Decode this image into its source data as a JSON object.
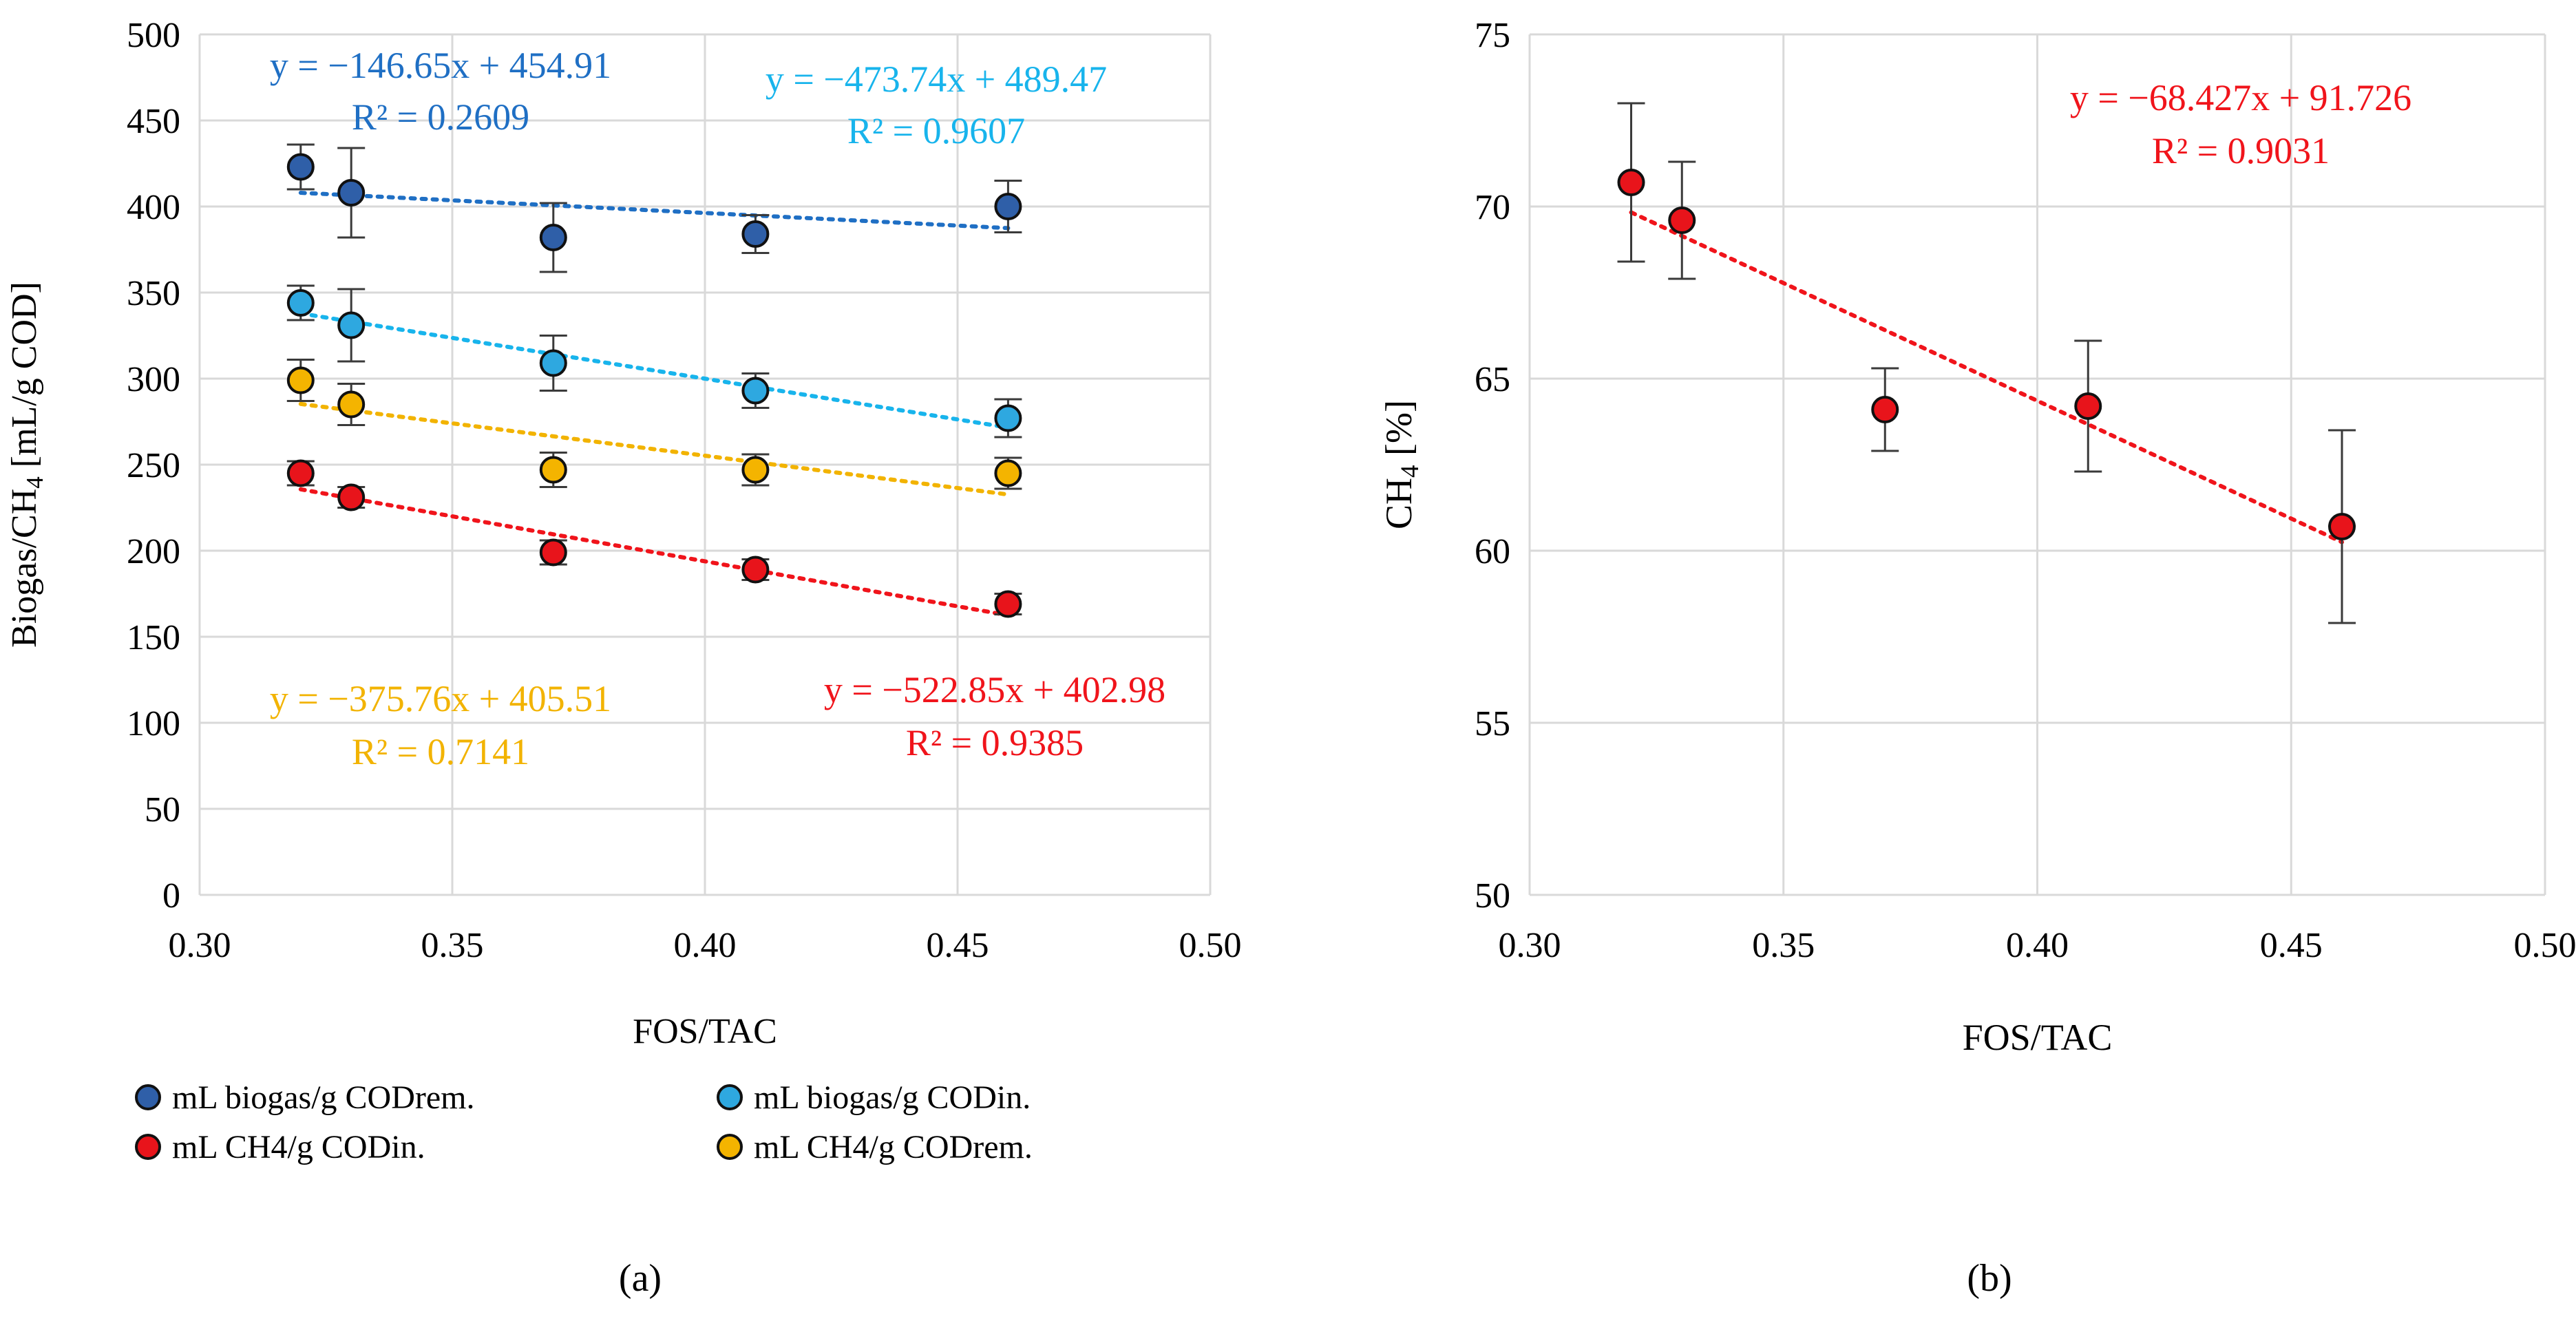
{
  "chart_data": [
    {
      "id": "a",
      "type": "scatter",
      "panel_label": "(a)",
      "xlabel": "FOS/TAC",
      "ylabel": "Biogas/CH₄ [mL/g COD]",
      "ylabel_parts": {
        "main": "Biogas/CH",
        "sub": "4",
        "tail": " [mL/g COD]"
      },
      "xlim": [
        0.3,
        0.5
      ],
      "ylim": [
        0,
        500
      ],
      "xticks": [
        0.3,
        0.35,
        0.4,
        0.45,
        0.5
      ],
      "xtick_labels": [
        "0.30",
        "0.35",
        "0.40",
        "0.45",
        "0.50"
      ],
      "yticks": [
        0,
        50,
        100,
        150,
        200,
        250,
        300,
        350,
        400,
        450,
        500
      ],
      "ytick_labels": [
        "0",
        "50",
        "100",
        "150",
        "200",
        "250",
        "300",
        "350",
        "400",
        "450",
        "500"
      ],
      "grid": true,
      "legend_position": "bottom",
      "series": [
        {
          "name": "mL biogas/g CODrem.",
          "color": "#2f5fa8",
          "x": [
            0.32,
            0.33,
            0.37,
            0.41,
            0.46
          ],
          "y": [
            423,
            408,
            382,
            384,
            400
          ],
          "err": [
            13,
            26,
            20,
            11,
            15
          ],
          "trend": {
            "slope": -146.65,
            "intercept": 454.91,
            "equation": "y = −146.65x + 454.91",
            "r2": "R² = 0.2609",
            "color": "#1f6fc4"
          }
        },
        {
          "name": "mL biogas/g CODin.",
          "color": "#2ea8e0",
          "x": [
            0.32,
            0.33,
            0.37,
            0.41,
            0.46
          ],
          "y": [
            344,
            331,
            309,
            293,
            277
          ],
          "err": [
            10,
            21,
            16,
            10,
            11
          ],
          "trend": {
            "slope": -473.74,
            "intercept": 489.47,
            "equation": "y = −473.74x + 489.47",
            "r2": "R² = 0.9607",
            "color": "#18b4ec"
          }
        },
        {
          "name": "mL CH4/g CODin.",
          "color": "#e8141b",
          "x": [
            0.32,
            0.33,
            0.37,
            0.41,
            0.46
          ],
          "y": [
            245,
            231,
            199,
            189,
            169
          ],
          "err": [
            7,
            6,
            7,
            6,
            6
          ],
          "trend": {
            "slope": -522.85,
            "intercept": 402.98,
            "equation": "y = −522.85x + 402.98",
            "r2": "R² = 0.9385",
            "color": "#f0141b"
          }
        },
        {
          "name": "mL CH4/g CODrem.",
          "color": "#f4b400",
          "x": [
            0.32,
            0.33,
            0.37,
            0.41,
            0.46
          ],
          "y": [
            299,
            285,
            247,
            247,
            245
          ],
          "err": [
            12,
            12,
            10,
            9,
            9
          ],
          "trend": {
            "slope": -375.76,
            "intercept": 405.51,
            "equation": "y = −375.76x + 405.51",
            "r2": "R² = 0.7141",
            "color": "#f2b300"
          }
        }
      ]
    },
    {
      "id": "b",
      "type": "scatter",
      "panel_label": "(b)",
      "xlabel": "FOS/TAC",
      "ylabel": "CH₄ [%]",
      "ylabel_parts": {
        "main": "CH",
        "sub": "4",
        "tail": " [%]"
      },
      "xlim": [
        0.3,
        0.5
      ],
      "ylim": [
        50,
        75
      ],
      "xticks": [
        0.3,
        0.35,
        0.4,
        0.45,
        0.5
      ],
      "xtick_labels": [
        "0.30",
        "0.35",
        "0.40",
        "0.45",
        "0.50"
      ],
      "yticks": [
        50,
        55,
        60,
        65,
        70,
        75
      ],
      "ytick_labels": [
        "50",
        "55",
        "60",
        "65",
        "70",
        "75"
      ],
      "grid": true,
      "series": [
        {
          "name": "CH4 [%]",
          "color": "#e8141b",
          "x": [
            0.32,
            0.33,
            0.37,
            0.41,
            0.46
          ],
          "y": [
            70.7,
            69.6,
            64.1,
            64.2,
            60.7
          ],
          "err": [
            2.3,
            1.7,
            1.2,
            1.9,
            2.8
          ],
          "trend": {
            "slope": -68.427,
            "intercept": 91.726,
            "equation": "y = −68.427x + 91.726",
            "r2": "R² = 0.9031",
            "color": "#f0141b"
          }
        }
      ]
    }
  ]
}
